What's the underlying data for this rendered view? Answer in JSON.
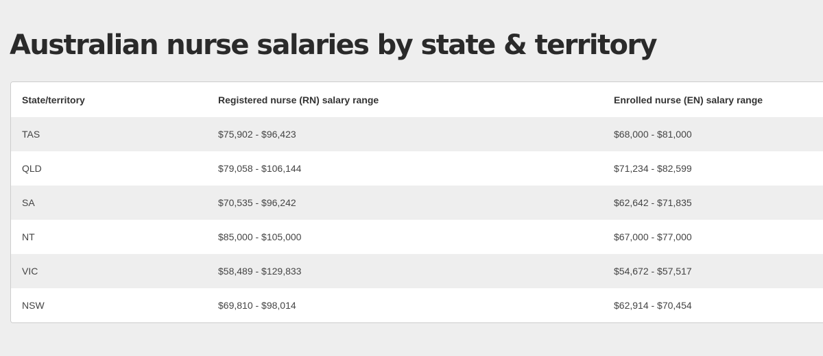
{
  "page": {
    "title": "Australian nurse salaries by state & territory"
  },
  "table": {
    "headers": [
      "State/territory",
      "Registered nurse (RN) salary range",
      "Enrolled nurse (EN) salary range"
    ],
    "rows": [
      {
        "state": "TAS",
        "rn": "$75,902 - $96,423",
        "en": "$68,000 - $81,000"
      },
      {
        "state": "QLD",
        "rn": "$79,058 - $106,144",
        "en": "$71,234 - $82,599"
      },
      {
        "state": "SA",
        "rn": "$70,535 - $96,242",
        "en": "$62,642 - $71,835"
      },
      {
        "state": "NT",
        "rn": "$85,000 - $105,000",
        "en": "$67,000 - $77,000"
      },
      {
        "state": "VIC",
        "rn": "$58,489 - $129,833",
        "en": "$54,672 - $57,517"
      },
      {
        "state": "NSW",
        "rn": "$69,810 - $98,014",
        "en": "$62,914 - $70,454"
      }
    ]
  },
  "colors": {
    "page_background": "#eeeeee",
    "striped_row": "#eeeeee",
    "card_border": "#cccccc"
  }
}
